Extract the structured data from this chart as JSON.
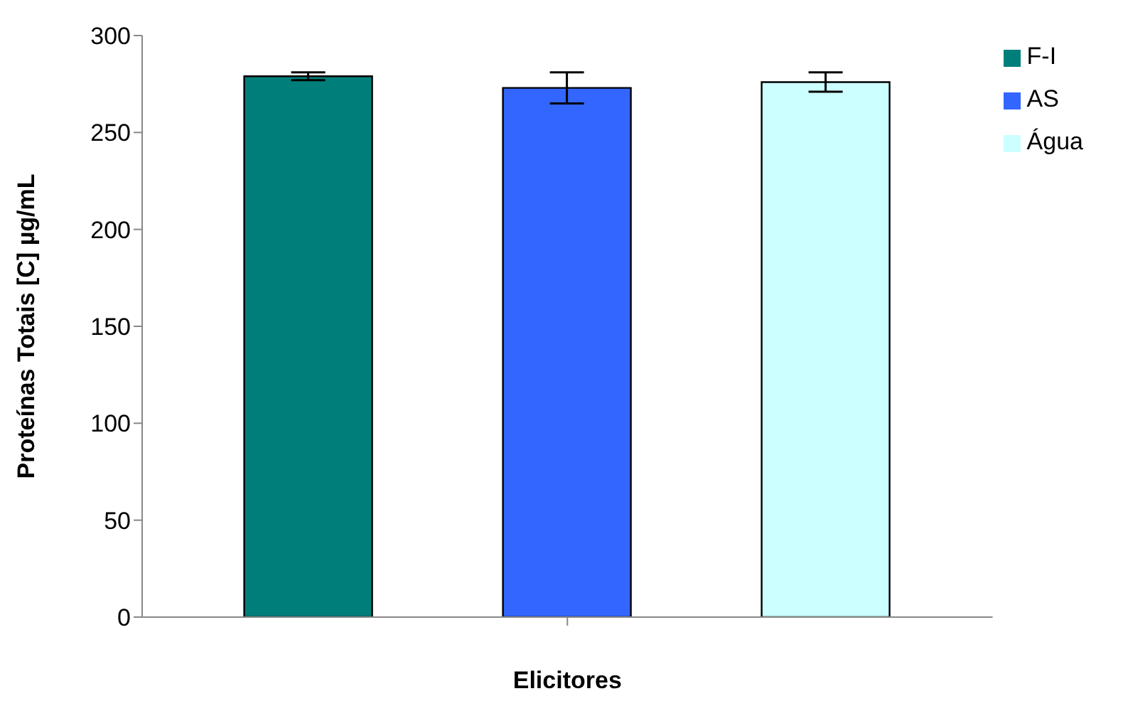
{
  "chart_data": {
    "type": "bar",
    "xlabel": "Elicitores",
    "ylabel": "Proteínas Totais [C] µg/mL",
    "categories": [
      null
    ],
    "series": [
      {
        "name": "F-I",
        "color": "#007f7a",
        "values": [
          279
        ],
        "errors": [
          2
        ]
      },
      {
        "name": "AS",
        "color": "#3366ff",
        "values": [
          273
        ],
        "errors": [
          8
        ]
      },
      {
        "name": "Água",
        "color": "#ccffff",
        "values": [
          276
        ],
        "errors": [
          5
        ]
      }
    ],
    "ylim": [
      0,
      300
    ],
    "yticks": [
      0,
      50,
      100,
      150,
      200,
      250,
      300
    ],
    "grid": false,
    "legend": "top right"
  }
}
